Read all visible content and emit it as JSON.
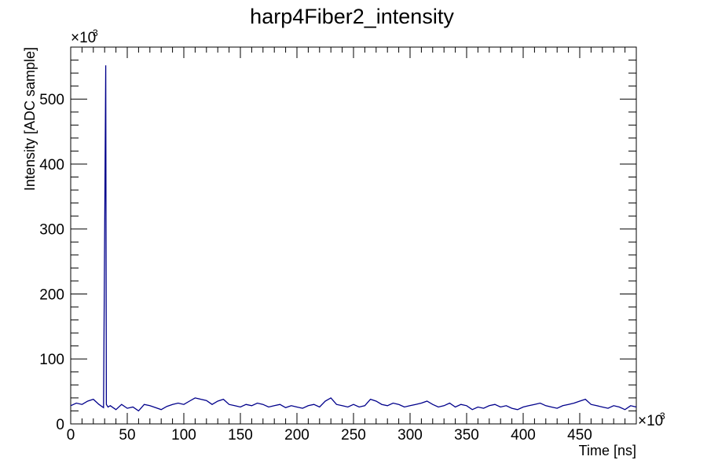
{
  "chart_data": {
    "type": "line",
    "title": "harp4Fiber2_intensity",
    "xlabel": "Time [ns]",
    "ylabel": "Intensity [ADC sample]",
    "x_multiplier": {
      "base": "×10",
      "exp": "3"
    },
    "y_multiplier": {
      "base": "×10",
      "exp": "3"
    },
    "xlim": [
      0,
      500
    ],
    "ylim": [
      0,
      580
    ],
    "x_ticks": [
      "0",
      "50",
      "100",
      "150",
      "200",
      "250",
      "300",
      "350",
      "400",
      "450"
    ],
    "y_ticks": [
      "0",
      "100",
      "200",
      "300",
      "400",
      "500"
    ],
    "grid": false,
    "legend": "none",
    "line_color": "#00008b",
    "series": [
      {
        "x": [
          0,
          5,
          10,
          15,
          20,
          25,
          29,
          31,
          31.5,
          33,
          35,
          40,
          45,
          50,
          55,
          60,
          65,
          70,
          75,
          80,
          85,
          90,
          95,
          100,
          105,
          110,
          115,
          120,
          125,
          130,
          135,
          140,
          145,
          150,
          155,
          160,
          165,
          170,
          175,
          180,
          185,
          190,
          195,
          200,
          205,
          210,
          215,
          220,
          225,
          230,
          235,
          240,
          245,
          250,
          255,
          260,
          265,
          270,
          275,
          280,
          285,
          290,
          295,
          300,
          305,
          310,
          315,
          320,
          325,
          330,
          335,
          340,
          345,
          350,
          355,
          360,
          365,
          370,
          375,
          380,
          385,
          390,
          395,
          400,
          405,
          410,
          415,
          420,
          425,
          430,
          435,
          440,
          445,
          450,
          455,
          460,
          465,
          470,
          475,
          480,
          485,
          490,
          495,
          500
        ],
        "y": [
          28,
          32,
          30,
          35,
          38,
          30,
          25,
          552,
          30,
          26,
          28,
          22,
          30,
          24,
          26,
          20,
          30,
          28,
          25,
          22,
          27,
          30,
          32,
          30,
          35,
          40,
          38,
          36,
          30,
          35,
          38,
          30,
          28,
          26,
          30,
          28,
          32,
          30,
          26,
          28,
          30,
          25,
          28,
          26,
          24,
          28,
          30,
          26,
          35,
          40,
          30,
          28,
          26,
          30,
          26,
          28,
          38,
          35,
          30,
          28,
          32,
          30,
          26,
          28,
          30,
          32,
          35,
          30,
          26,
          28,
          32,
          26,
          30,
          28,
          22,
          26,
          24,
          28,
          30,
          26,
          28,
          24,
          22,
          26,
          28,
          30,
          32,
          28,
          26,
          24,
          28,
          30,
          32,
          35,
          38,
          30,
          28,
          26,
          24,
          28,
          26,
          22,
          28,
          26
        ]
      }
    ]
  }
}
